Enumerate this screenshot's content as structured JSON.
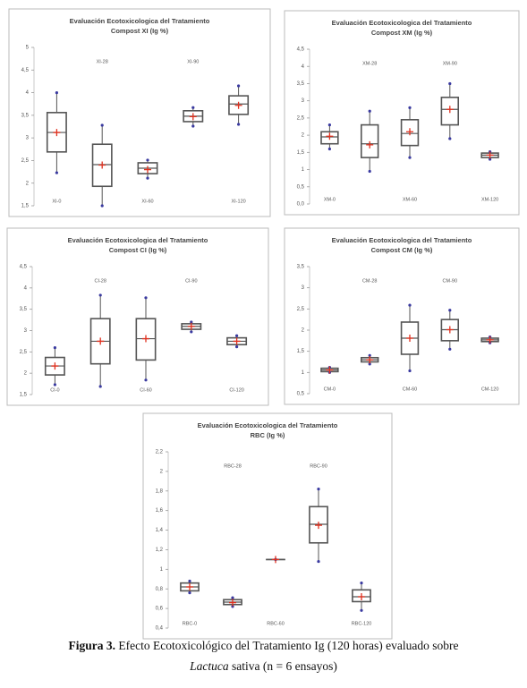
{
  "chart_data": [
    {
      "type": "box",
      "title": "Evaluación Ecotoxicologica del Tratamiento",
      "subtitle": "Compost XI (Ig %)",
      "categories": [
        "XI-0",
        "XI-28",
        "XI-60",
        "XI-90",
        "XI-120"
      ],
      "boxes": [
        {
          "min": 2.23,
          "q1": 2.69,
          "median": 3.12,
          "q3": 3.56,
          "max": 4.0,
          "mean": 3.12
        },
        {
          "min": 1.5,
          "q1": 1.93,
          "median": 2.41,
          "q3": 2.86,
          "max": 3.28,
          "mean": 2.4
        },
        {
          "min": 2.11,
          "q1": 2.21,
          "median": 2.33,
          "q3": 2.45,
          "max": 2.51,
          "mean": 2.3
        },
        {
          "min": 3.26,
          "q1": 3.36,
          "median": 3.48,
          "q3": 3.6,
          "max": 3.67,
          "mean": 3.47
        },
        {
          "min": 3.3,
          "q1": 3.52,
          "median": 3.75,
          "q3": 3.93,
          "max": 4.15,
          "mean": 3.72
        }
      ],
      "color": "#555555",
      "mean_color": "#e0301e",
      "whisker_end_color": "#3a3aa0",
      "ylim": [
        1.5,
        5
      ],
      "yticks": [
        {
          "value": 1.5,
          "label": "1,5"
        },
        2,
        {
          "value": 2.5,
          "label": "2,5"
        },
        3,
        {
          "value": 3.5,
          "label": "3,5"
        },
        4,
        {
          "value": 4.5,
          "label": "4,5"
        },
        5
      ]
    },
    {
      "type": "box",
      "title": "Evaluación Ecotoxicologica del Tratamiento",
      "subtitle": "Compost XM (Ig %)",
      "categories": [
        "XM-0",
        "XM-28",
        "XM-60",
        "XM-90",
        "XM-120"
      ],
      "boxes": [
        {
          "min": 1.6,
          "q1": 1.75,
          "median": 1.95,
          "q3": 2.1,
          "max": 2.3,
          "mean": 1.97
        },
        {
          "min": 0.95,
          "q1": 1.35,
          "median": 1.75,
          "q3": 2.3,
          "max": 2.7,
          "mean": 1.72
        },
        {
          "min": 1.35,
          "q1": 1.7,
          "median": 2.05,
          "q3": 2.45,
          "max": 2.8,
          "mean": 2.1
        },
        {
          "min": 1.9,
          "q1": 2.3,
          "median": 2.75,
          "q3": 3.1,
          "max": 3.5,
          "mean": 2.75
        },
        {
          "min": 1.3,
          "q1": 1.35,
          "median": 1.42,
          "q3": 1.48,
          "max": 1.52,
          "mean": 1.42
        }
      ],
      "color": "#555555",
      "mean_color": "#e0301e",
      "whisker_end_color": "#3a3aa0",
      "ylim": [
        0,
        4.5
      ],
      "yticks": [
        {
          "value": 0,
          "label": "0,0"
        },
        {
          "value": 0.5,
          "label": "0,5"
        },
        1,
        {
          "value": 1.5,
          "label": "1,5"
        },
        2,
        {
          "value": 2.5,
          "label": "2,5"
        },
        3,
        {
          "value": 3.5,
          "label": "3,5"
        },
        4,
        {
          "value": 4.5,
          "label": "4,5"
        }
      ]
    },
    {
      "type": "box",
      "title": "Evaluación Ecotoxicologica del Tratamiento",
      "subtitle": "Compost CI (Ig %)",
      "categories": [
        "CI-0",
        "CI-28",
        "CI-60",
        "CI-90",
        "CI-120"
      ],
      "boxes": [
        {
          "min": 1.73,
          "q1": 1.96,
          "median": 2.17,
          "q3": 2.37,
          "max": 2.6,
          "mean": 2.17
        },
        {
          "min": 1.69,
          "q1": 2.22,
          "median": 2.75,
          "q3": 3.28,
          "max": 3.83,
          "mean": 2.75
        },
        {
          "min": 1.84,
          "q1": 2.31,
          "median": 2.81,
          "q3": 3.28,
          "max": 3.77,
          "mean": 2.81
        },
        {
          "min": 2.97,
          "q1": 3.03,
          "median": 3.1,
          "q3": 3.16,
          "max": 3.2,
          "mean": 3.1
        },
        {
          "min": 2.62,
          "q1": 2.67,
          "median": 2.75,
          "q3": 2.83,
          "max": 2.88,
          "mean": 2.75
        }
      ],
      "color": "#555555",
      "mean_color": "#e0301e",
      "whisker_end_color": "#3a3aa0",
      "ylim": [
        1.5,
        4.5
      ],
      "yticks": [
        {
          "value": 1.5,
          "label": "1,5"
        },
        2,
        {
          "value": 2.5,
          "label": "2,5"
        },
        3,
        {
          "value": 3.5,
          "label": "3,5"
        },
        4,
        {
          "value": 4.5,
          "label": "4,5"
        }
      ]
    },
    {
      "type": "box",
      "title": "Evaluación Ecotoxicologica del Tratamiento",
      "subtitle": "Compost CM (Ig %)",
      "categories": [
        "CM-0",
        "CM-28",
        "CM-60",
        "CM-90",
        "CM-120"
      ],
      "boxes": [
        {
          "min": 1.0,
          "q1": 1.02,
          "median": 1.06,
          "q3": 1.1,
          "max": 1.12,
          "mean": 1.06
        },
        {
          "min": 1.2,
          "q1": 1.25,
          "median": 1.3,
          "q3": 1.35,
          "max": 1.4,
          "mean": 1.3
        },
        {
          "min": 1.04,
          "q1": 1.43,
          "median": 1.81,
          "q3": 2.19,
          "max": 2.59,
          "mean": 1.81
        },
        {
          "min": 1.55,
          "q1": 1.75,
          "median": 2.01,
          "q3": 2.25,
          "max": 2.47,
          "mean": 2.01
        },
        {
          "min": 1.7,
          "q1": 1.73,
          "median": 1.77,
          "q3": 1.81,
          "max": 1.84,
          "mean": 1.77
        }
      ],
      "color": "#555555",
      "mean_color": "#e0301e",
      "whisker_end_color": "#3a3aa0",
      "ylim": [
        0.5,
        3.5
      ],
      "yticks": [
        {
          "value": 0.5,
          "label": "0,5"
        },
        1,
        {
          "value": 1.5,
          "label": "1,5"
        },
        2,
        {
          "value": 2.5,
          "label": "2,5"
        },
        3,
        {
          "value": 3.5,
          "label": "3,5"
        }
      ]
    },
    {
      "type": "box",
      "title": "Evaluación Ecotoxicologica del Tratamiento",
      "subtitle": "RBC (Ig %)",
      "categories": [
        "RBC-0",
        "RBC-28",
        "RBC-60",
        "RBC-90",
        "RBC-120"
      ],
      "boxes": [
        {
          "min": 0.76,
          "q1": 0.78,
          "median": 0.82,
          "q3": 0.86,
          "max": 0.88,
          "mean": 0.82
        },
        {
          "min": 0.62,
          "q1": 0.64,
          "median": 0.665,
          "q3": 0.69,
          "max": 0.71,
          "mean": 0.66
        },
        {
          "min": 1.1,
          "q1": 1.1,
          "median": 1.1,
          "q3": 1.1,
          "max": 1.1,
          "mean": 1.1
        },
        {
          "min": 1.08,
          "q1": 1.27,
          "median": 1.46,
          "q3": 1.64,
          "max": 1.82,
          "mean": 1.45
        },
        {
          "min": 0.58,
          "q1": 0.67,
          "median": 0.72,
          "q3": 0.79,
          "max": 0.86,
          "mean": 0.72
        }
      ],
      "color": "#555555",
      "mean_color": "#e0301e",
      "whisker_end_color": "#3a3aa0",
      "ylim": [
        0.4,
        2.2
      ],
      "yticks": [
        {
          "value": 0.4,
          "label": "0,4"
        },
        {
          "value": 0.6,
          "label": "0,6"
        },
        {
          "value": 0.8,
          "label": "0,8"
        },
        1,
        {
          "value": 1.2,
          "label": "1,2"
        },
        {
          "value": 1.4,
          "label": "1,4"
        },
        {
          "value": 1.6,
          "label": "1,6"
        },
        {
          "value": 1.8,
          "label": "1,8"
        },
        2,
        {
          "value": 2.2,
          "label": "2,2"
        }
      ]
    }
  ],
  "caption": {
    "label": "Figura 3.",
    "text": "Efecto Ecotoxicológico del Tratamiento Ig (120 horas) evaluado sobre",
    "species": "Lactuca",
    "text_end": "sativa (n = 6 ensayos)"
  }
}
